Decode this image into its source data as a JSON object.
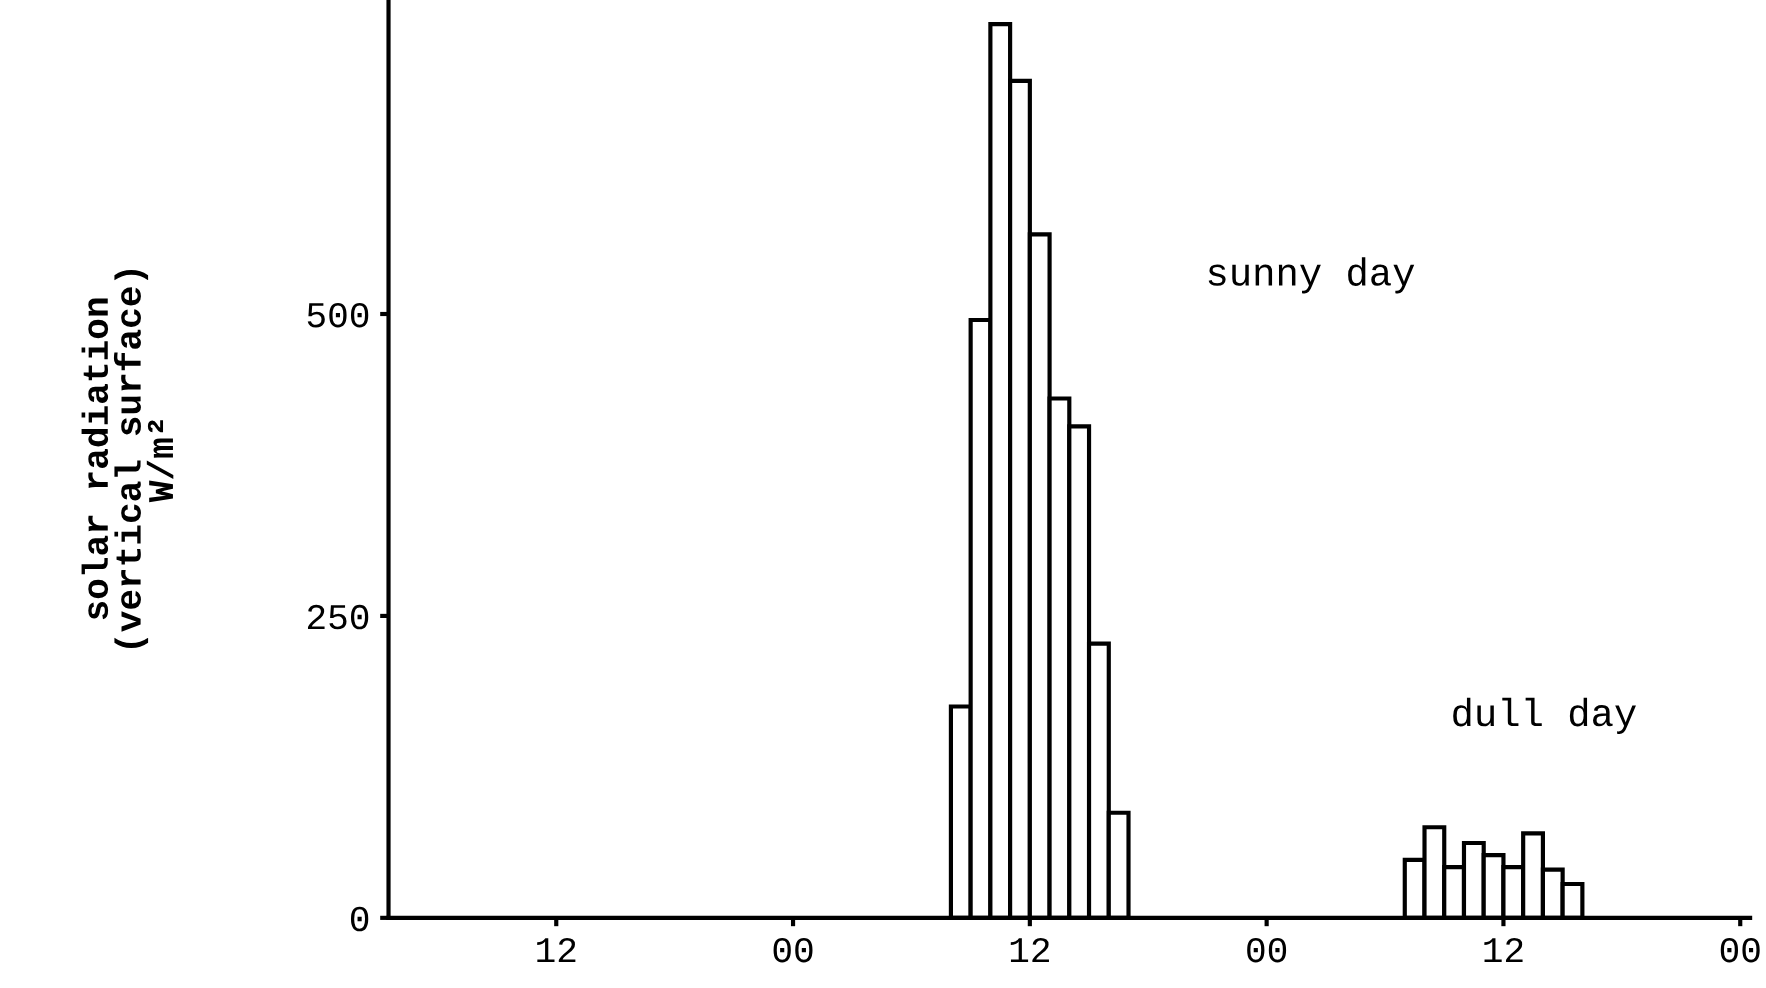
{
  "chart_data": {
    "type": "bar",
    "ylabel": "solar radiation\n(vertical surface)\nW/m²",
    "categories": [
      null,
      null,
      null,
      null,
      null,
      null,
      null,
      "12",
      null,
      null,
      null,
      null,
      null,
      null,
      null,
      null,
      null,
      null,
      null,
      "00",
      null,
      null,
      null,
      null,
      null,
      null,
      null,
      null,
      null,
      null,
      null,
      "12",
      null,
      null,
      null,
      null,
      null,
      null,
      null,
      null,
      null,
      null,
      null,
      "00",
      null,
      null,
      null,
      null,
      null,
      null,
      null,
      null,
      null,
      null,
      null,
      "12",
      null,
      null,
      null,
      null,
      null,
      null,
      null,
      null,
      null,
      null,
      null,
      "00"
    ],
    "color": "#ffffff",
    "values": [
      null,
      null,
      null,
      null,
      null,
      null,
      null,
      null,
      null,
      null,
      null,
      null,
      null,
      null,
      null,
      null,
      null,
      null,
      null,
      null,
      null,
      null,
      null,
      null,
      null,
      null,
      null,
      null,
      175,
      495,
      740,
      693,
      566,
      430,
      407,
      227,
      87,
      null,
      null,
      null,
      null,
      null,
      null,
      null,
      null,
      null,
      null,
      null,
      null,
      null,
      null,
      48,
      75,
      42,
      62,
      52,
      42,
      70,
      40,
      28,
      null,
      null,
      null,
      null,
      null,
      null,
      null,
      null
    ],
    "annotations": [
      "sunny day",
      "dull day"
    ],
    "ylim": [
      0,
      760
    ],
    "yticks": [
      0,
      250,
      500
    ],
    "grid": false,
    "legend": false
  }
}
